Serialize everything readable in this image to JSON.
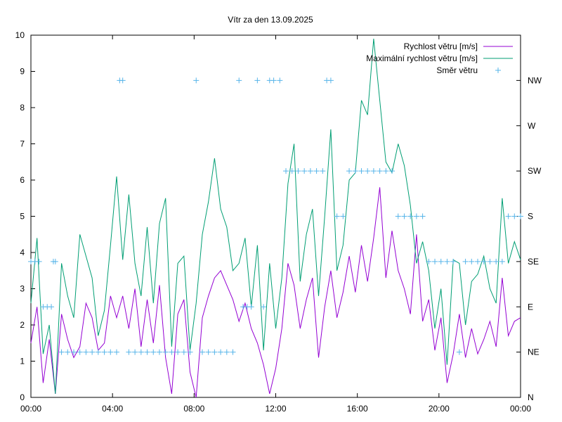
{
  "chart_data": {
    "type": "line",
    "title": "Vítr za den 13.09.2025",
    "x_axis": {
      "range_hours": [
        0,
        24
      ],
      "tick_labels": [
        "00:00",
        "04:00",
        "08:00",
        "12:00",
        "16:00",
        "20:00",
        "00:00"
      ],
      "tick_hours": [
        0,
        4,
        8,
        12,
        16,
        20,
        24
      ],
      "grid": false
    },
    "y_axis_left": {
      "range": [
        0,
        10
      ],
      "tick_labels": [
        "0",
        "1",
        "2",
        "3",
        "4",
        "5",
        "6",
        "7",
        "8",
        "9",
        "10"
      ],
      "grid": false
    },
    "y_axis_right": {
      "range": [
        0,
        8
      ],
      "tick_labels": [
        "N",
        "NE",
        "E",
        "SE",
        "S",
        "SW",
        "W",
        "NW"
      ],
      "grid": false
    },
    "legend_position": "top-right",
    "series": [
      {
        "name": "Rychlost větru [m/s]",
        "color": "#9400d3",
        "style": "line",
        "axis": "left",
        "points": [
          [
            0,
            1.5
          ],
          [
            0.3,
            2.5
          ],
          [
            0.6,
            0.4
          ],
          [
            0.9,
            1.6
          ],
          [
            1.2,
            0.1
          ],
          [
            1.5,
            2.3
          ],
          [
            1.8,
            1.6
          ],
          [
            2.1,
            1.1
          ],
          [
            2.4,
            1.4
          ],
          [
            2.7,
            2.6
          ],
          [
            3,
            2.2
          ],
          [
            3.3,
            1.3
          ],
          [
            3.6,
            1.5
          ],
          [
            3.9,
            2.8
          ],
          [
            4.2,
            2.2
          ],
          [
            4.5,
            2.8
          ],
          [
            4.8,
            1.9
          ],
          [
            5.1,
            3.0
          ],
          [
            5.4,
            1.4
          ],
          [
            5.7,
            2.7
          ],
          [
            6,
            1.5
          ],
          [
            6.3,
            3.1
          ],
          [
            6.6,
            1.1
          ],
          [
            6.9,
            0.1
          ],
          [
            7.2,
            2.3
          ],
          [
            7.5,
            2.7
          ],
          [
            7.8,
            0.7
          ],
          [
            8.1,
            0.0
          ],
          [
            8.4,
            2.2
          ],
          [
            8.7,
            2.8
          ],
          [
            9,
            3.3
          ],
          [
            9.3,
            3.5
          ],
          [
            9.6,
            3.1
          ],
          [
            9.9,
            2.7
          ],
          [
            10.2,
            2.1
          ],
          [
            10.5,
            2.6
          ],
          [
            10.8,
            1.9
          ],
          [
            11.1,
            1.5
          ],
          [
            11.4,
            0.9
          ],
          [
            11.7,
            0.1
          ],
          [
            12,
            0.8
          ],
          [
            12.3,
            1.9
          ],
          [
            12.6,
            3.7
          ],
          [
            12.9,
            3.1
          ],
          [
            13.2,
            1.9
          ],
          [
            13.5,
            2.7
          ],
          [
            13.8,
            3.3
          ],
          [
            14.1,
            1.1
          ],
          [
            14.4,
            2.5
          ],
          [
            14.7,
            3.5
          ],
          [
            15,
            2.2
          ],
          [
            15.3,
            2.9
          ],
          [
            15.6,
            3.9
          ],
          [
            15.9,
            2.9
          ],
          [
            16.2,
            4.2
          ],
          [
            16.5,
            3.2
          ],
          [
            16.8,
            4.4
          ],
          [
            17.1,
            5.8
          ],
          [
            17.4,
            3.3
          ],
          [
            17.7,
            4.6
          ],
          [
            18,
            3.5
          ],
          [
            18.3,
            3.0
          ],
          [
            18.6,
            2.3
          ],
          [
            18.9,
            4.5
          ],
          [
            19.2,
            2.1
          ],
          [
            19.5,
            2.7
          ],
          [
            19.8,
            1.3
          ],
          [
            20.1,
            2.2
          ],
          [
            20.4,
            0.4
          ],
          [
            20.7,
            1.2
          ],
          [
            21,
            2.3
          ],
          [
            21.3,
            1.1
          ],
          [
            21.6,
            1.9
          ],
          [
            21.9,
            1.2
          ],
          [
            22.2,
            1.6
          ],
          [
            22.5,
            2.1
          ],
          [
            22.8,
            1.4
          ],
          [
            23.1,
            3.3
          ],
          [
            23.4,
            1.7
          ],
          [
            23.7,
            2.1
          ],
          [
            24,
            2.2
          ]
        ]
      },
      {
        "name": "Maximální rychlost větru [m/s]",
        "color": "#009e73",
        "style": "line",
        "axis": "left",
        "points": [
          [
            0,
            2.6
          ],
          [
            0.3,
            4.4
          ],
          [
            0.6,
            1.2
          ],
          [
            0.9,
            2.0
          ],
          [
            1.2,
            0.1
          ],
          [
            1.5,
            3.7
          ],
          [
            1.8,
            2.8
          ],
          [
            2.1,
            2.2
          ],
          [
            2.4,
            4.5
          ],
          [
            2.7,
            3.9
          ],
          [
            3,
            3.3
          ],
          [
            3.3,
            1.7
          ],
          [
            3.6,
            2.4
          ],
          [
            3.9,
            4.2
          ],
          [
            4.2,
            6.1
          ],
          [
            4.5,
            3.8
          ],
          [
            4.8,
            5.6
          ],
          [
            5.1,
            3.7
          ],
          [
            5.4,
            2.8
          ],
          [
            5.7,
            4.7
          ],
          [
            6,
            2.6
          ],
          [
            6.3,
            4.8
          ],
          [
            6.6,
            5.5
          ],
          [
            6.9,
            1.4
          ],
          [
            7.2,
            3.7
          ],
          [
            7.5,
            3.9
          ],
          [
            7.8,
            1.3
          ],
          [
            8.1,
            2.6
          ],
          [
            8.4,
            4.5
          ],
          [
            8.7,
            5.4
          ],
          [
            9,
            6.6
          ],
          [
            9.3,
            5.2
          ],
          [
            9.6,
            4.7
          ],
          [
            9.9,
            3.5
          ],
          [
            10.2,
            3.7
          ],
          [
            10.5,
            4.4
          ],
          [
            10.8,
            2.5
          ],
          [
            11.1,
            4.2
          ],
          [
            11.4,
            1.3
          ],
          [
            11.7,
            3.7
          ],
          [
            12,
            1.9
          ],
          [
            12.3,
            3.3
          ],
          [
            12.6,
            5.9
          ],
          [
            12.9,
            7.0
          ],
          [
            13.2,
            3.2
          ],
          [
            13.5,
            4.5
          ],
          [
            13.8,
            5.2
          ],
          [
            14.1,
            2.8
          ],
          [
            14.4,
            5.0
          ],
          [
            14.7,
            7.4
          ],
          [
            15,
            3.5
          ],
          [
            15.3,
            4.2
          ],
          [
            15.6,
            6.0
          ],
          [
            15.9,
            6.2
          ],
          [
            16.2,
            8.2
          ],
          [
            16.5,
            7.8
          ],
          [
            16.8,
            9.9
          ],
          [
            17.1,
            8.2
          ],
          [
            17.4,
            6.5
          ],
          [
            17.7,
            6.2
          ],
          [
            18,
            7.0
          ],
          [
            18.3,
            6.4
          ],
          [
            18.6,
            5.3
          ],
          [
            18.9,
            3.7
          ],
          [
            19.2,
            4.3
          ],
          [
            19.5,
            3.5
          ],
          [
            19.8,
            1.9
          ],
          [
            20.1,
            3.0
          ],
          [
            20.4,
            0.9
          ],
          [
            20.7,
            3.8
          ],
          [
            21,
            3.7
          ],
          [
            21.3,
            2.0
          ],
          [
            21.6,
            3.2
          ],
          [
            21.9,
            3.4
          ],
          [
            22.2,
            3.9
          ],
          [
            22.5,
            3.0
          ],
          [
            22.8,
            2.6
          ],
          [
            23.1,
            5.5
          ],
          [
            23.4,
            3.7
          ],
          [
            23.7,
            4.3
          ],
          [
            24,
            3.8
          ]
        ]
      },
      {
        "name": "Směr větru",
        "color": "#56b4e9",
        "style": "points",
        "axis": "right",
        "points": [
          [
            0.0,
            3
          ],
          [
            0.2,
            3
          ],
          [
            0.4,
            3
          ],
          [
            0.6,
            2
          ],
          [
            0.8,
            2
          ],
          [
            1.0,
            2
          ],
          [
            1.1,
            3
          ],
          [
            1.2,
            3
          ],
          [
            1.5,
            1
          ],
          [
            1.8,
            1
          ],
          [
            2.1,
            1
          ],
          [
            2.4,
            1
          ],
          [
            2.7,
            1
          ],
          [
            3.0,
            1
          ],
          [
            3.3,
            1
          ],
          [
            3.6,
            1
          ],
          [
            3.9,
            1
          ],
          [
            4.2,
            1
          ],
          [
            4.35,
            7
          ],
          [
            4.5,
            7
          ],
          [
            4.8,
            1
          ],
          [
            5.1,
            1
          ],
          [
            5.4,
            1
          ],
          [
            5.7,
            1
          ],
          [
            6.0,
            1
          ],
          [
            6.3,
            1
          ],
          [
            6.6,
            1
          ],
          [
            6.9,
            1
          ],
          [
            7.2,
            1
          ],
          [
            7.5,
            1
          ],
          [
            7.8,
            1
          ],
          [
            8.1,
            7
          ],
          [
            8.4,
            1
          ],
          [
            8.7,
            1
          ],
          [
            9.0,
            1
          ],
          [
            9.3,
            1
          ],
          [
            9.6,
            1
          ],
          [
            9.9,
            1
          ],
          [
            10.2,
            7
          ],
          [
            10.4,
            2
          ],
          [
            10.6,
            2
          ],
          [
            10.8,
            2
          ],
          [
            11.1,
            7
          ],
          [
            11.4,
            2
          ],
          [
            11.7,
            7
          ],
          [
            11.9,
            7
          ],
          [
            12.2,
            7
          ],
          [
            12.5,
            5
          ],
          [
            12.8,
            5
          ],
          [
            13.1,
            5
          ],
          [
            13.4,
            5
          ],
          [
            13.7,
            5
          ],
          [
            14.0,
            5
          ],
          [
            14.3,
            5
          ],
          [
            14.5,
            7
          ],
          [
            14.7,
            7
          ],
          [
            15.0,
            4
          ],
          [
            15.3,
            4
          ],
          [
            15.6,
            5
          ],
          [
            15.9,
            5
          ],
          [
            16.2,
            5
          ],
          [
            16.5,
            5
          ],
          [
            16.8,
            5
          ],
          [
            17.1,
            5
          ],
          [
            17.4,
            5
          ],
          [
            17.7,
            5
          ],
          [
            18.0,
            4
          ],
          [
            18.3,
            4
          ],
          [
            18.6,
            4
          ],
          [
            18.9,
            4
          ],
          [
            19.2,
            4
          ],
          [
            19.5,
            3
          ],
          [
            19.8,
            3
          ],
          [
            20.1,
            3
          ],
          [
            20.4,
            3
          ],
          [
            20.7,
            3
          ],
          [
            21.0,
            1
          ],
          [
            21.3,
            3
          ],
          [
            21.6,
            3
          ],
          [
            21.9,
            3
          ],
          [
            22.2,
            3
          ],
          [
            22.5,
            3
          ],
          [
            22.8,
            3
          ],
          [
            23.1,
            3
          ],
          [
            23.4,
            4
          ],
          [
            23.7,
            4
          ],
          [
            24.0,
            4
          ]
        ]
      }
    ]
  }
}
